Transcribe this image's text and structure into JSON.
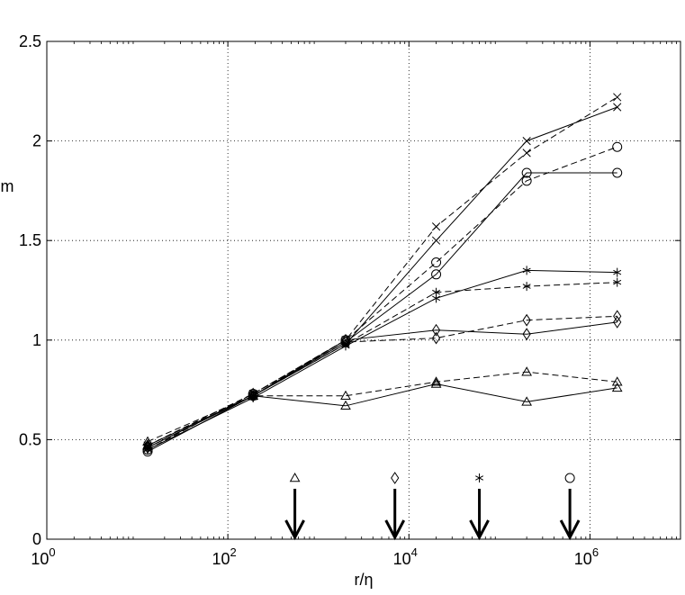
{
  "chart_data": {
    "type": "line",
    "xscale": "log",
    "xlim": [
      1,
      10000000
    ],
    "ylim": [
      0,
      2.5
    ],
    "xlabel": "r/η",
    "ylabel": "m",
    "grid": true,
    "xticks": [
      {
        "value": 1,
        "base": "10",
        "exp": "0"
      },
      {
        "value": 100,
        "base": "10",
        "exp": "2"
      },
      {
        "value": 10000,
        "base": "10",
        "exp": "4"
      },
      {
        "value": 1000000,
        "base": "10",
        "exp": "6"
      }
    ],
    "yticks": [
      {
        "value": 0,
        "label": "0"
      },
      {
        "value": 0.5,
        "label": "0.5"
      },
      {
        "value": 1,
        "label": "1"
      },
      {
        "value": 1.5,
        "label": "1.5"
      },
      {
        "value": 2,
        "label": "2"
      },
      {
        "value": 2.5,
        "label": "2.5"
      }
    ],
    "x": [
      13,
      190,
      2000,
      20000,
      200000,
      2000000
    ],
    "series": [
      {
        "marker": "triangle",
        "style": "solid",
        "values": [
          0.47,
          0.72,
          0.67,
          0.78,
          0.69,
          0.76
        ]
      },
      {
        "marker": "triangle",
        "style": "dashed",
        "values": [
          0.49,
          0.72,
          0.72,
          0.79,
          0.84,
          0.79
        ]
      },
      {
        "marker": "diamond",
        "style": "solid",
        "values": [
          0.46,
          0.72,
          1.0,
          1.05,
          1.03,
          1.09
        ]
      },
      {
        "marker": "diamond",
        "style": "dashed",
        "values": [
          0.47,
          0.73,
          0.99,
          1.01,
          1.1,
          1.12
        ]
      },
      {
        "marker": "star",
        "style": "solid",
        "values": [
          0.45,
          0.71,
          0.97,
          1.21,
          1.35,
          1.34
        ]
      },
      {
        "marker": "star",
        "style": "dashed",
        "values": [
          0.46,
          0.72,
          0.98,
          1.24,
          1.27,
          1.29
        ]
      },
      {
        "marker": "circle",
        "style": "solid",
        "values": [
          0.44,
          0.72,
          0.99,
          1.33,
          1.84,
          1.84
        ]
      },
      {
        "marker": "circle",
        "style": "dashed",
        "values": [
          0.45,
          0.73,
          1.0,
          1.39,
          1.8,
          1.97
        ]
      },
      {
        "marker": "x",
        "style": "solid",
        "values": [
          0.46,
          0.72,
          0.98,
          1.5,
          2.0,
          2.17
        ]
      },
      {
        "marker": "x",
        "style": "dashed",
        "values": [
          0.47,
          0.73,
          1.0,
          1.57,
          1.94,
          2.22
        ]
      }
    ],
    "annotations": [
      {
        "type": "arrow",
        "marker": "triangle",
        "x": 550
      },
      {
        "type": "arrow",
        "marker": "diamond",
        "x": 7000
      },
      {
        "type": "arrow",
        "marker": "star",
        "x": 60000
      },
      {
        "type": "arrow",
        "marker": "circle",
        "x": 600000
      }
    ]
  }
}
